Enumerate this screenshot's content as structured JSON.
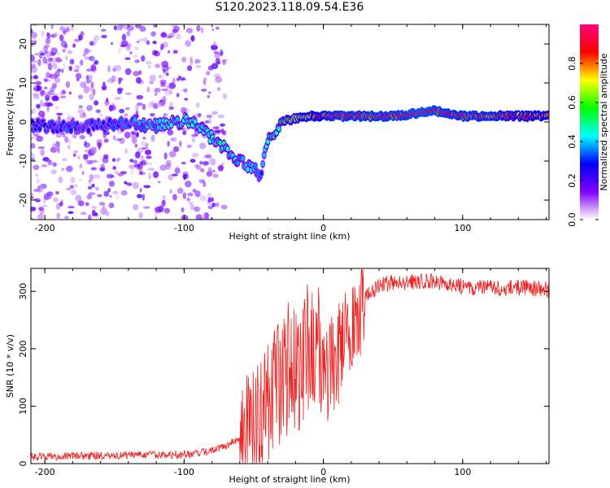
{
  "title": "S120.2023.118.09.54.E36",
  "chart_data": [
    {
      "type": "heatmap",
      "xlabel": "Height of straight line (km)",
      "ylabel": "Frequency (Hz)",
      "xlim": [
        -210,
        162
      ],
      "ylim": [
        -25,
        25
      ],
      "x_ticks": [
        -200,
        -100,
        0,
        100
      ],
      "y_ticks": [
        -20,
        -10,
        0,
        10,
        20
      ],
      "colorbar": {
        "label": "Normalized spectral amplitude",
        "ticks": [
          0.0,
          0.2,
          0.4,
          0.6,
          0.8
        ],
        "range": [
          0,
          1
        ],
        "colors": [
          "#ffffff",
          "#8000ff",
          "#0000ff",
          "#00ffff",
          "#00ff00",
          "#ffff00",
          "#ff0000",
          "#ff0080"
        ]
      },
      "ridge": {
        "x": [
          -200,
          -180,
          -160,
          -140,
          -120,
          -100,
          -90,
          -80,
          -70,
          -60,
          -50,
          -45,
          -40,
          -35,
          -30,
          -20,
          -10,
          0,
          10,
          20,
          40,
          60,
          70,
          80,
          90,
          100,
          120,
          140,
          162
        ],
        "y": [
          -1,
          -1.5,
          -1,
          -0.5,
          -1,
          0.5,
          -1,
          -4,
          -7,
          -10,
          -12,
          -14,
          -5,
          -3,
          0,
          1,
          1.5,
          1.5,
          1.5,
          1.5,
          1.5,
          1.8,
          2.5,
          3,
          2,
          1.5,
          1.5,
          1.5,
          1.5
        ],
        "amplitude": [
          0.3,
          0.35,
          0.3,
          0.35,
          0.4,
          0.45,
          0.45,
          0.45,
          0.45,
          0.4,
          0.4,
          0.3,
          0.5,
          0.5,
          0.55,
          0.7,
          0.8,
          0.85,
          0.9,
          0.9,
          0.9,
          0.92,
          0.95,
          0.92,
          0.9,
          0.9,
          0.88,
          0.85,
          0.8
        ]
      },
      "noise_region_x": [
        -210,
        -80
      ]
    },
    {
      "type": "line",
      "xlabel": "Height of straight line (km)",
      "ylabel": "SNR (10 * v/v)",
      "xlim": [
        -210,
        162
      ],
      "ylim": [
        0,
        340
      ],
      "x_ticks": [
        -200,
        -100,
        0,
        100
      ],
      "y_ticks": [
        0,
        100,
        200,
        300
      ],
      "color": "#ee2222",
      "series": [
        {
          "x": [
            -210,
            -180,
            -150,
            -120,
            -100,
            -90,
            -80,
            -70,
            -60,
            -55,
            -50,
            -45,
            -40,
            -35,
            -30,
            -25,
            -20,
            -15,
            -10,
            -5,
            0,
            5,
            10,
            15,
            20,
            25,
            30,
            35,
            40,
            50,
            60,
            70,
            80,
            90,
            100,
            120,
            140,
            160,
            162
          ],
          "values": [
            12,
            13,
            14,
            15,
            16,
            18,
            22,
            30,
            45,
            60,
            70,
            85,
            100,
            120,
            160,
            170,
            180,
            185,
            190,
            195,
            175,
            165,
            185,
            220,
            245,
            265,
            290,
            300,
            310,
            315,
            315,
            318,
            318,
            312,
            308,
            306,
            306,
            305,
            300
          ]
        }
      ]
    }
  ]
}
